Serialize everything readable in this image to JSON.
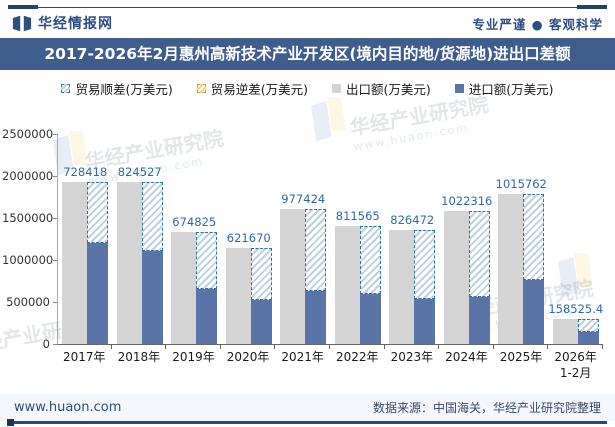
{
  "header": {
    "brand": "华经情报网",
    "tagline": "专业严谨 ● 客观科学"
  },
  "title": "2017-2026年2月惠州高新技术产业开发区(境内目的地/货源地)进出口差额",
  "chart_data": {
    "type": "bar",
    "title": "2017-2026年2月惠州高新技术产业开发区(境内目的地/货源地)进出口差额",
    "categories": [
      "2017年",
      "2018年",
      "2019年",
      "2020年",
      "2021年",
      "2022年",
      "2023年",
      "2024年",
      "2025年",
      "2026年\n1-2月"
    ],
    "series": [
      {
        "key": "surplus",
        "name": "贸易顺差(万美元)",
        "style": "hatched",
        "stroke": "#34739e",
        "hatch_color": "#bcd2e0",
        "values": [
          728418,
          824527,
          674825,
          621670,
          977424,
          811565,
          826472,
          1022316,
          1015762,
          158525.4
        ]
      },
      {
        "key": "deficit",
        "name": "贸易逆差(万美元)",
        "style": "hatched",
        "stroke": "#c9a227",
        "hatch_color": "#ead583",
        "values": [
          0,
          0,
          0,
          0,
          0,
          0,
          0,
          0,
          0,
          0
        ]
      },
      {
        "key": "export",
        "name": "出口额(万美元)",
        "color": "#d4d4d4",
        "values": [
          1928418,
          1934527,
          1334825,
          1141670,
          1607424,
          1401565,
          1361472,
          1582316,
          1780762,
          303525.4
        ]
      },
      {
        "key": "import",
        "name": "进口额(万美元)",
        "color": "#5b74a8",
        "values": [
          1200000,
          1110000,
          660000,
          520000,
          630000,
          590000,
          535000,
          560000,
          765000,
          145000
        ]
      }
    ],
    "value_labels": [
      "728418",
      "824527",
      "674825",
      "621670",
      "977424",
      "811565",
      "826472",
      "1022316",
      "1015762",
      "158525.4"
    ],
    "xlabel": "",
    "ylabel": "",
    "ylim": [
      0,
      2500000
    ],
    "yticks": [
      0,
      500000,
      1000000,
      1500000,
      2000000,
      2500000
    ],
    "legend_position": "top",
    "grid": false
  },
  "watermark": {
    "text": "华经产业研究院",
    "url": "www.huaon.com"
  },
  "footer": {
    "website": "www.huaon.com",
    "source": "数据来源：中国海关，华经产业研究院整理"
  },
  "colors": {
    "title_bar": "#3e5d8d",
    "brand_blue": "#2e4d80",
    "export_bar": "#d4d4d4",
    "import_bar": "#5b74a8",
    "surplus_border": "#34739e",
    "deficit_border": "#c9a227",
    "value_label": "#2e6a9e"
  }
}
